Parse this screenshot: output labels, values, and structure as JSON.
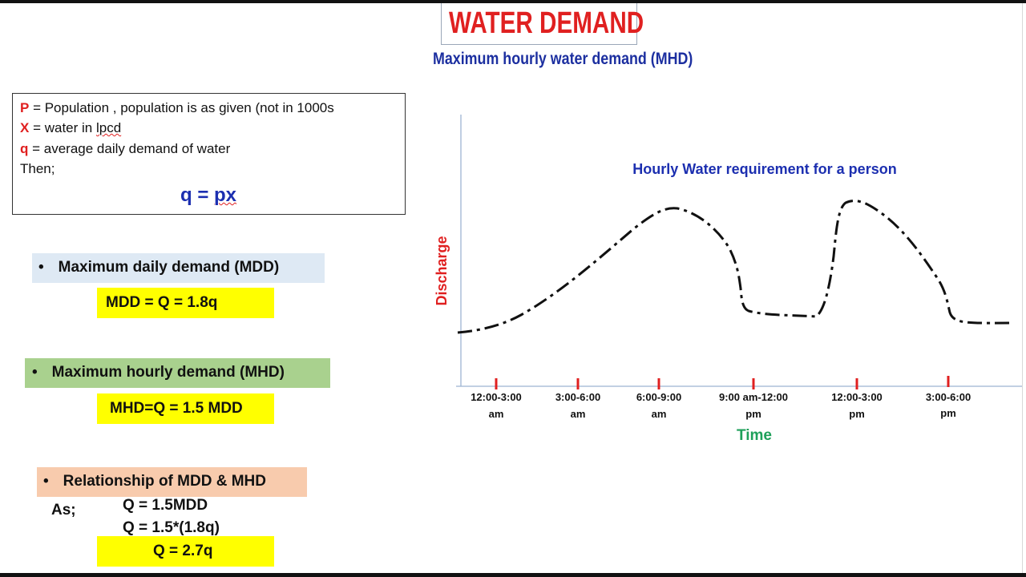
{
  "header": {
    "title": "WATER DEMAND",
    "subtitle": "Maximum hourly water demand (MHD)"
  },
  "definitions": {
    "p_symbol": "P",
    "p_text": " = Population , population is as given (not in 1000s",
    "x_symbol": "X",
    "x_text_1": " = water in ",
    "x_text_2": "lpcd",
    "q_symbol": "q",
    "q_text": " = average daily demand of water",
    "then": "Then;",
    "formula_1": "q = ",
    "formula_2": "px"
  },
  "mdd": {
    "heading": "Maximum daily demand (MDD)",
    "formula": "MDD = Q = 1.8q",
    "color": "#dee9f4"
  },
  "mhd": {
    "heading": "Maximum hourly demand (MHD)",
    "formula": "MHD=Q = 1.5 MDD",
    "color": "#a9d18e"
  },
  "relationship": {
    "heading": "Relationship of MDD & MHD",
    "color": "#f8cbad",
    "as_label": "As;",
    "line1": "Q = 1.5MDD",
    "line2": "Q = 1.5*(1.8q)",
    "result": "Q = 2.7q"
  },
  "bullet": "•",
  "chart_data": {
    "type": "line",
    "title": "Hourly Water requirement for a person",
    "xlabel": "Time",
    "ylabel": "Discharge",
    "categories": [
      "12:00-3:00 am",
      "3:00-6:00 am",
      "6:00-9:00 am",
      "9:00 am-12:00 pm",
      "12:00-3:00 pm",
      "3:00-6:00 pm"
    ],
    "tick_labels": [
      [
        "12:00-3:00",
        "am"
      ],
      [
        "3:00-6:00",
        "am"
      ],
      [
        "6:00-9:00",
        "am"
      ],
      [
        "9:00 am-12:00",
        "pm"
      ],
      [
        "12:00-3:00",
        "pm"
      ],
      [
        "3:00-6:00",
        "pm"
      ]
    ],
    "series": [
      {
        "line_style": "dash-dot",
        "color": "#111111"
      }
    ],
    "y_axis_ticks": false,
    "grid": false,
    "tick_color": "#e02020",
    "ylabel_color": "#e02020",
    "xlabel_color": "#1ea05a",
    "title_color": "#1c2fb0"
  }
}
